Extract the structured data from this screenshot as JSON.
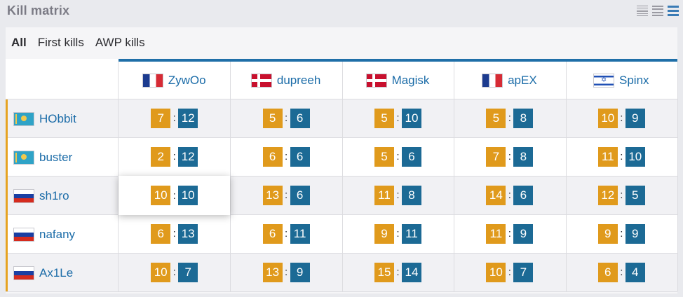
{
  "header": {
    "title": "Kill matrix"
  },
  "view_icons": [
    "compact-view-icon",
    "list-view-icon",
    "default-view-icon"
  ],
  "tabs": [
    {
      "label": "All",
      "active": true
    },
    {
      "label": "First kills",
      "active": false
    },
    {
      "label": "AWP kills",
      "active": false
    }
  ],
  "columns": [
    {
      "name": "ZywOo",
      "flag": "france-flag"
    },
    {
      "name": "dupreeh",
      "flag": "denmark-flag"
    },
    {
      "name": "Magisk",
      "flag": "denmark-flag"
    },
    {
      "name": "apEX",
      "flag": "france-flag"
    },
    {
      "name": "Spinx",
      "flag": "israel-flag"
    }
  ],
  "rows": [
    {
      "name": "HObbit",
      "flag": "kazakhstan-flag",
      "cells": [
        {
          "kills": "7",
          "deaths": "12"
        },
        {
          "kills": "5",
          "deaths": "6"
        },
        {
          "kills": "5",
          "deaths": "10"
        },
        {
          "kills": "5",
          "deaths": "8"
        },
        {
          "kills": "10",
          "deaths": "9"
        }
      ]
    },
    {
      "name": "buster",
      "flag": "kazakhstan-flag",
      "cells": [
        {
          "kills": "2",
          "deaths": "12"
        },
        {
          "kills": "6",
          "deaths": "6"
        },
        {
          "kills": "5",
          "deaths": "6"
        },
        {
          "kills": "7",
          "deaths": "8"
        },
        {
          "kills": "11",
          "deaths": "10"
        }
      ]
    },
    {
      "name": "sh1ro",
      "flag": "russia-flag",
      "cells": [
        {
          "kills": "10",
          "deaths": "10"
        },
        {
          "kills": "13",
          "deaths": "6"
        },
        {
          "kills": "11",
          "deaths": "8"
        },
        {
          "kills": "14",
          "deaths": "6"
        },
        {
          "kills": "12",
          "deaths": "5"
        }
      ]
    },
    {
      "name": "nafany",
      "flag": "russia-flag",
      "cells": [
        {
          "kills": "6",
          "deaths": "13"
        },
        {
          "kills": "6",
          "deaths": "11"
        },
        {
          "kills": "9",
          "deaths": "11"
        },
        {
          "kills": "11",
          "deaths": "9"
        },
        {
          "kills": "9",
          "deaths": "9"
        }
      ]
    },
    {
      "name": "Ax1Le",
      "flag": "russia-flag",
      "cells": [
        {
          "kills": "10",
          "deaths": "7"
        },
        {
          "kills": "13",
          "deaths": "9"
        },
        {
          "kills": "15",
          "deaths": "14"
        },
        {
          "kills": "10",
          "deaths": "7"
        },
        {
          "kills": "6",
          "deaths": "4"
        }
      ]
    }
  ],
  "separator": ":",
  "colors": {
    "kills": "#e09a1c",
    "deaths": "#1c6a95",
    "accent": "#1f6fa8",
    "row_accent": "#e6a321",
    "link": "#1b6ca8"
  }
}
